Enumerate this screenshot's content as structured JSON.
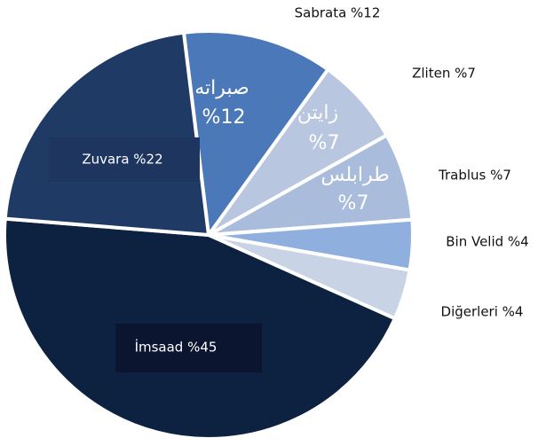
{
  "chart_data": {
    "type": "pie",
    "values": [
      12,
      7,
      7,
      4,
      4,
      45,
      22
    ],
    "value_labels": [
      "Sabrata %12",
      "Zliten %7",
      "Trablus %7",
      "Bin Velid %4",
      "Diğerleri %4",
      "İmsaad %45",
      "Zuvara %22"
    ],
    "colors": [
      "#4a78b8",
      "#b8c6e0",
      "#a9bcdc",
      "#8fb0df",
      "#c9d3e6",
      "#0d2240",
      "#1f3a64"
    ],
    "annotations": [
      {
        "text": "صبراته",
        "label": "%12"
      },
      {
        "text": "زايتن",
        "label": "%7"
      },
      {
        "text": "طرابلس",
        "label": "%7"
      }
    ]
  }
}
